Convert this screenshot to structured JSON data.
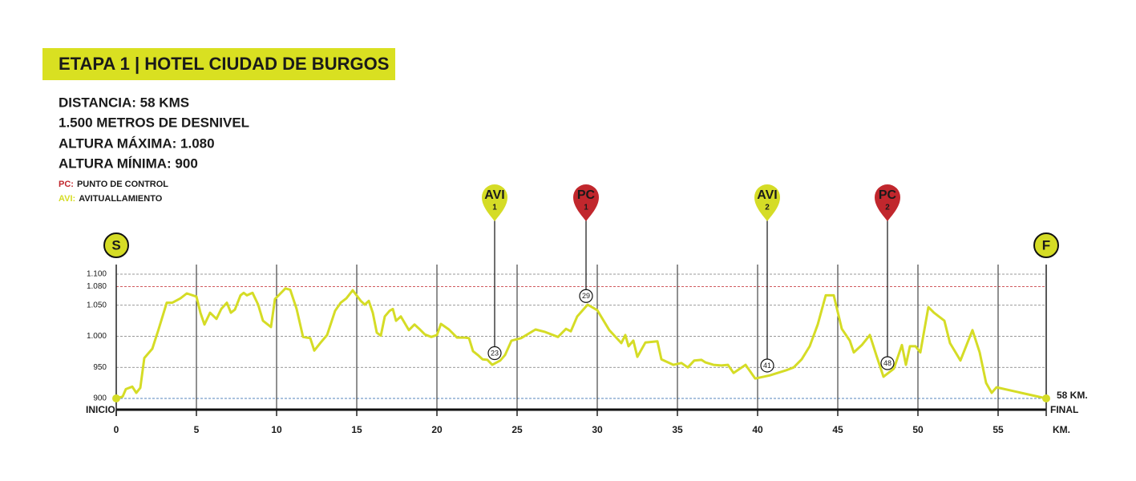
{
  "header": {
    "title": "ETAPA 1 | HOTEL CIUDAD DE BURGOS"
  },
  "info": [
    "DISTANCIA: 58 KMS",
    "1.500 METROS DE DESNIVEL",
    "ALTURA MÁXIMA: 1.080",
    "ALTURA MÍNIMA: 900"
  ],
  "legend": [
    {
      "key": "PC:",
      "text": "PUNTO DE CONTROL",
      "color": "#c1272d"
    },
    {
      "key": "AVI:",
      "text": "AVITUALLAMIENTO",
      "color": "#d5dc26"
    }
  ],
  "chart_data": {
    "type": "line",
    "color": "#d5dc26",
    "x": [
      0,
      0.4,
      0.6,
      1.0,
      1.25,
      1.5,
      1.75,
      2.25,
      2.65,
      3.15,
      3.5,
      4.0,
      4.4,
      5.0,
      5.25,
      5.5,
      5.85,
      6.25,
      6.55,
      6.9,
      7.15,
      7.4,
      7.75,
      7.95,
      8.15,
      8.5,
      8.85,
      9.15,
      9.65,
      9.9,
      10.55,
      10.85,
      11.25,
      11.65,
      12.1,
      12.35,
      12.75,
      13.15,
      13.65,
      14.0,
      14.35,
      14.75,
      15.25,
      15.5,
      15.75,
      16.0,
      16.25,
      16.5,
      16.75,
      17.05,
      17.25,
      17.45,
      17.75,
      18.25,
      18.6,
      18.9,
      19.25,
      19.65,
      20.0,
      20.25,
      20.75,
      21.25,
      21.75,
      22.0,
      22.25,
      22.55,
      22.85,
      23.15,
      23.45,
      23.95,
      24.25,
      24.65,
      25.25,
      26.15,
      26.75,
      27.55,
      28.05,
      28.35,
      28.75,
      29.4,
      30.0,
      30.75,
      31.5,
      31.75,
      31.95,
      32.25,
      32.5,
      33.0,
      33.75,
      34.0,
      34.75,
      35.25,
      35.65,
      36.05,
      36.5,
      36.75,
      37.25,
      37.75,
      38.15,
      38.5,
      39.25,
      39.85,
      40.75,
      41.75,
      42.25,
      42.75,
      43.25,
      43.75,
      44.25,
      44.75,
      45.25,
      45.75,
      46.0,
      46.5,
      47.0,
      47.4,
      47.85,
      48.5,
      49.0,
      49.25,
      49.5,
      49.85,
      50.15,
      50.65,
      51.0,
      51.65,
      52.0,
      52.65,
      53.4,
      53.85,
      54.25,
      54.6,
      54.9,
      58.0
    ],
    "values": [
      900,
      903,
      915,
      919,
      909,
      917,
      965,
      980,
      1012,
      1054,
      1054,
      1061,
      1069,
      1064,
      1038,
      1019,
      1038,
      1028,
      1044,
      1054,
      1038,
      1043,
      1066,
      1070,
      1066,
      1070,
      1051,
      1025,
      1015,
      1060,
      1077,
      1075,
      1044,
      999,
      997,
      977,
      990,
      1002,
      1041,
      1054,
      1061,
      1074,
      1057,
      1051,
      1057,
      1038,
      1006,
      1001,
      1032,
      1041,
      1044,
      1025,
      1032,
      1010,
      1019,
      1012,
      1003,
      999,
      1002,
      1020,
      1011,
      998,
      998,
      997,
      976,
      970,
      963,
      962,
      954,
      961,
      970,
      993,
      997,
      1011,
      1007,
      999,
      1012,
      1008,
      1032,
      1051,
      1042,
      1010,
      989,
      1002,
      984,
      993,
      967,
      990,
      992,
      963,
      954,
      957,
      950,
      961,
      962,
      958,
      954,
      953,
      954,
      941,
      954,
      932,
      937,
      945,
      950,
      963,
      984,
      1019,
      1066,
      1066,
      1012,
      993,
      974,
      986,
      1002,
      970,
      935,
      948,
      986,
      954,
      984,
      984,
      974,
      1047,
      1038,
      1025,
      989,
      961,
      1010,
      974,
      925,
      909,
      918,
      900
    ],
    "xlim": [
      0,
      58
    ],
    "ylim": [
      900,
      1100
    ],
    "xticks": [
      0,
      5,
      10,
      15,
      20,
      25,
      30,
      35,
      40,
      45,
      50,
      55
    ],
    "yticks": [
      {
        "value": 1100,
        "label": "1.100"
      },
      {
        "value": 1080,
        "label": "1.080"
      },
      {
        "value": 1050,
        "label": "1.050"
      },
      {
        "value": 1000,
        "label": "1.000"
      },
      950,
      900
    ],
    "ytick_colors": [
      "#333333",
      "#c1272d",
      "#333333",
      "#333333",
      "#333333",
      "#1d5fa8"
    ],
    "x_unit": "KM.",
    "start": {
      "icon": "S",
      "label": "INICIO"
    },
    "finish": {
      "icon": "F",
      "label": "FINAL",
      "distance": "58 KM."
    },
    "markers": [
      {
        "label": "AVI",
        "number": 1,
        "km": 23,
        "x": 23.6,
        "color": "#d5dc26"
      },
      {
        "label": "PC",
        "number": 1,
        "km": 29,
        "x": 29.3,
        "color": "#c1272d"
      },
      {
        "label": "AVI",
        "number": 2,
        "km": 41,
        "x": 40.6,
        "color": "#d5dc26"
      },
      {
        "label": "PC",
        "number": 2,
        "km": 48,
        "x": 48.1,
        "color": "#c1272d"
      }
    ]
  }
}
